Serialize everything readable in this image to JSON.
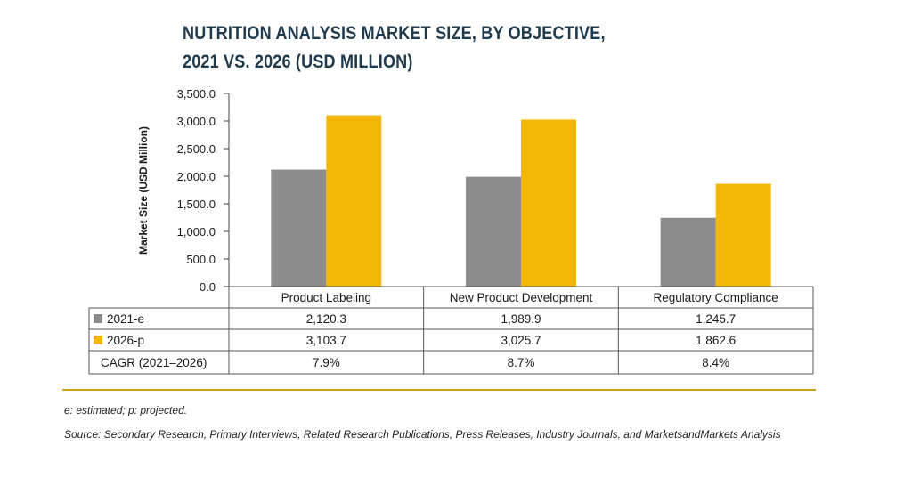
{
  "title_line1": "NUTRITION ANALYSIS MARKET SIZE, BY OBJECTIVE,",
  "title_line2": "2021 VS. 2026 (USD MILLION)",
  "footnote": "e: estimated; p: projected.",
  "source": "Source: Secondary Research, Primary Interviews, Related Research Publications, Press Releases, Industry Journals, and MarketsandMarkets Analysis",
  "colors": {
    "series_2021": "#8c8c8c",
    "series_2026": "#f2b705",
    "rule": "#c8a31c"
  },
  "chart_data": {
    "type": "bar",
    "title": "NUTRITION ANALYSIS MARKET SIZE, BY OBJECTIVE, 2021 VS. 2026 (USD MILLION)",
    "ylabel": "Market Size (USD Million)",
    "xlabel": "",
    "ylim": [
      0,
      3500
    ],
    "yticks": [
      "0.0",
      "500.0",
      "1,000.0",
      "1,500.0",
      "2,000.0",
      "2,500.0",
      "3,000.0",
      "3,500.0"
    ],
    "categories": [
      "Product Labeling",
      "New Product Development",
      "Regulatory Compliance"
    ],
    "series": [
      {
        "name": "2021-e",
        "color": "#8c8c8c",
        "values": [
          2120.3,
          1989.9,
          1245.7
        ],
        "labels": [
          "2,120.3",
          "1,989.9",
          "1,245.7"
        ]
      },
      {
        "name": "2026-p",
        "color": "#f2b705",
        "values": [
          3103.7,
          3025.7,
          1862.6
        ],
        "labels": [
          "3,103.7",
          "3,025.7",
          "1,862.6"
        ]
      }
    ],
    "cagr_label": "CAGR (2021–2026)",
    "cagr": [
      "7.9%",
      "8.7%",
      "8.4%"
    ],
    "grid": false
  }
}
